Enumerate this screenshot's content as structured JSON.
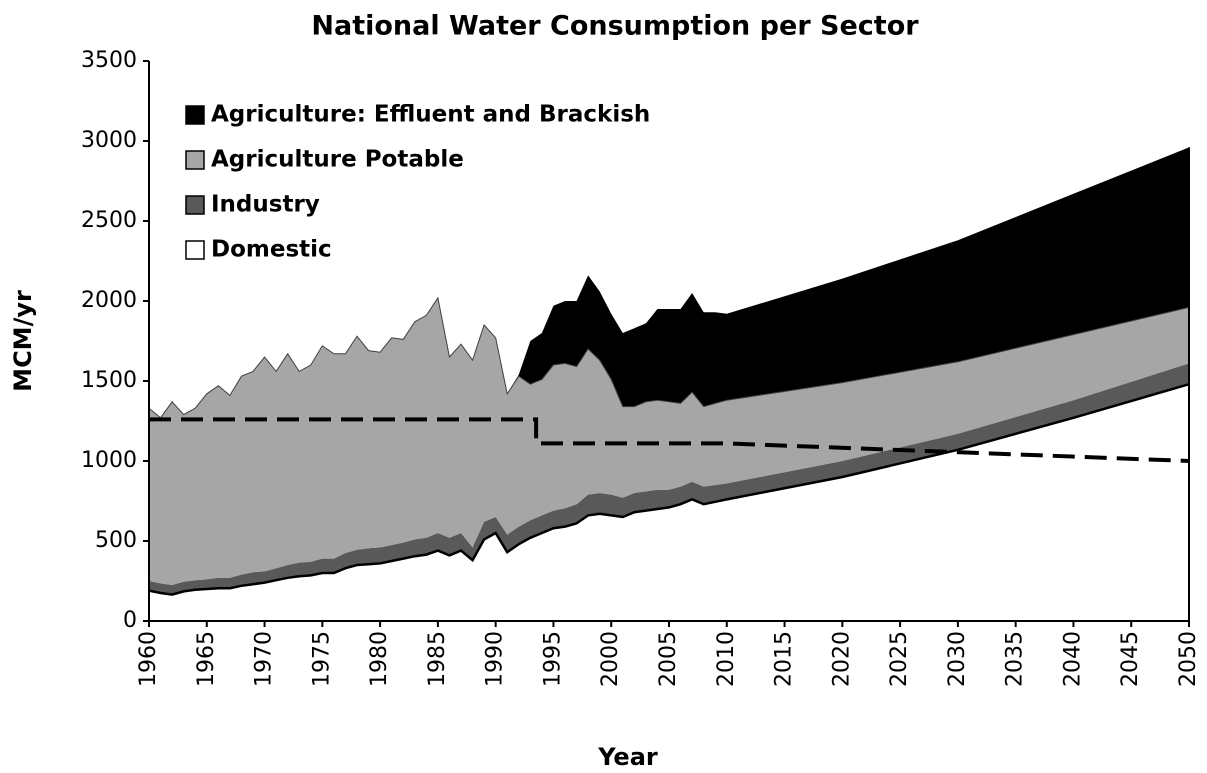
{
  "chart_data": {
    "type": "stacked_area",
    "title": "National Water Consumption per Sector",
    "xlabel": "Year",
    "ylabel": "MCM/yr",
    "x": [
      1960,
      1961,
      1962,
      1963,
      1964,
      1965,
      1966,
      1967,
      1968,
      1969,
      1970,
      1971,
      1972,
      1973,
      1974,
      1975,
      1976,
      1977,
      1978,
      1979,
      1980,
      1981,
      1982,
      1983,
      1984,
      1985,
      1986,
      1987,
      1988,
      1989,
      1990,
      1991,
      1992,
      1993,
      1994,
      1995,
      1996,
      1997,
      1998,
      1999,
      2000,
      2001,
      2002,
      2003,
      2004,
      2005,
      2006,
      2007,
      2008,
      2009,
      2010,
      2020,
      2030,
      2040,
      2050
    ],
    "series": [
      {
        "name": "Domestic",
        "color": "#ffffff",
        "outline": "#000000",
        "values": [
          190,
          175,
          165,
          185,
          195,
          200,
          205,
          205,
          220,
          230,
          240,
          255,
          270,
          280,
          285,
          300,
          300,
          330,
          350,
          355,
          360,
          375,
          390,
          405,
          415,
          440,
          410,
          440,
          380,
          510,
          550,
          430,
          480,
          520,
          550,
          580,
          590,
          610,
          660,
          670,
          660,
          650,
          680,
          690,
          700,
          710,
          730,
          760,
          730,
          745,
          760,
          900,
          1070,
          1270,
          1480
        ]
      },
      {
        "name": "Industry",
        "color": "#595959",
        "values": [
          60,
          60,
          60,
          60,
          60,
          60,
          65,
          65,
          70,
          75,
          70,
          75,
          80,
          85,
          85,
          90,
          90,
          95,
          95,
          100,
          100,
          100,
          100,
          105,
          105,
          110,
          110,
          110,
          80,
          110,
          100,
          110,
          110,
          110,
          110,
          110,
          115,
          120,
          130,
          130,
          130,
          120,
          120,
          120,
          120,
          110,
          110,
          110,
          110,
          105,
          100,
          100,
          100,
          110,
          130
        ]
      },
      {
        "name": "Agriculture Potable",
        "color": "#a6a6a6",
        "outline": "#404040",
        "values": [
          1080,
          1035,
          1145,
          1045,
          1075,
          1160,
          1200,
          1140,
          1240,
          1255,
          1340,
          1230,
          1320,
          1195,
          1230,
          1330,
          1280,
          1245,
          1335,
          1235,
          1220,
          1295,
          1270,
          1360,
          1390,
          1470,
          1130,
          1180,
          1170,
          1230,
          1120,
          880,
          940,
          850,
          850,
          910,
          905,
          860,
          910,
          830,
          720,
          570,
          540,
          560,
          560,
          550,
          520,
          560,
          500,
          510,
          520,
          490,
          450,
          410,
          350
        ]
      },
      {
        "name": "Agriculture: Effluent and Brackish",
        "color": "#000000",
        "values": [
          0,
          0,
          0,
          0,
          0,
          0,
          0,
          0,
          0,
          0,
          0,
          0,
          0,
          0,
          0,
          0,
          0,
          0,
          0,
          0,
          0,
          0,
          0,
          0,
          0,
          0,
          0,
          0,
          0,
          0,
          0,
          0,
          10,
          270,
          290,
          370,
          390,
          410,
          460,
          430,
          410,
          460,
          490,
          490,
          570,
          580,
          590,
          620,
          590,
          570,
          540,
          650,
          760,
          880,
          1000
        ]
      }
    ],
    "line": {
      "x": [
        1960,
        1993.5,
        1993.5,
        2010,
        2050
      ],
      "values": [
        1260,
        1260,
        1110,
        1110,
        1000
      ],
      "color": "#000000",
      "dashed": true
    },
    "xlim": [
      1960,
      2050
    ],
    "xticks": [
      1960,
      1965,
      1970,
      1975,
      1980,
      1985,
      1990,
      1995,
      2000,
      2005,
      2010,
      2015,
      2020,
      2025,
      2030,
      2035,
      2040,
      2045,
      2050
    ],
    "ylim": [
      0,
      3500
    ],
    "yticks": [
      0,
      500,
      1000,
      1500,
      2000,
      2500,
      3000,
      3500
    ],
    "legend": "upper left"
  }
}
